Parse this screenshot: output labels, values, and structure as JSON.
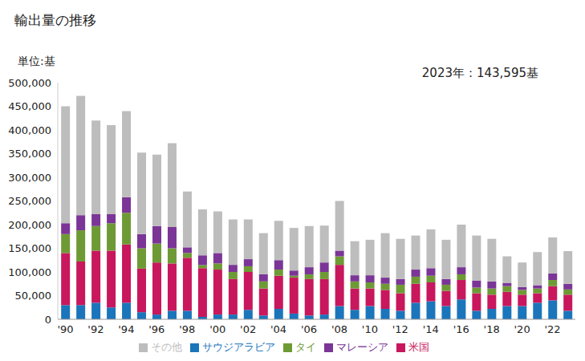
{
  "chart_data": {
    "type": "bar",
    "title": "輸出量の推移",
    "y_label": "単位:基",
    "annotations": [
      "2023年：143,595基"
    ],
    "stacked": true,
    "grid": false,
    "legend": "bottom",
    "categories": [
      "'90",
      null,
      "'92",
      null,
      "'94",
      null,
      "'96",
      null,
      "'98",
      null,
      "'00",
      null,
      "'02",
      null,
      "'04",
      null,
      "'06",
      null,
      "'08",
      null,
      "'10",
      null,
      "'12",
      null,
      "'14",
      null,
      "'16",
      null,
      "'18",
      null,
      "'20",
      null,
      "'22",
      null
    ],
    "series": [
      {
        "name": "サウジアラビア",
        "color": "#1b75bb",
        "values": [
          30000,
          30000,
          35000,
          25000,
          35000,
          15000,
          10000,
          18000,
          18000,
          5000,
          10000,
          10000,
          20000,
          8000,
          22000,
          12000,
          8000,
          10000,
          28000,
          20000,
          28000,
          22000,
          18000,
          35000,
          38000,
          28000,
          42000,
          18000,
          22000,
          28000,
          28000,
          35000,
          40000,
          18000
        ]
      },
      {
        "name": "米国",
        "color": "#c8175d",
        "values": [
          110000,
          92000,
          110000,
          120000,
          123000,
          92000,
          110000,
          100000,
          112000,
          103000,
          95000,
          75000,
          80000,
          57000,
          70000,
          76000,
          77000,
          75000,
          87000,
          45000,
          37000,
          40000,
          37000,
          40000,
          40000,
          32000,
          41000,
          37000,
          30000,
          30000,
          24000,
          20000,
          30000,
          34000
        ]
      },
      {
        "name": "タイ",
        "color": "#6e9a35",
        "values": [
          40000,
          66000,
          52000,
          58000,
          67000,
          43000,
          40000,
          32000,
          10000,
          7000,
          13000,
          15000,
          12000,
          15000,
          13000,
          4000,
          10000,
          15000,
          18000,
          15000,
          13000,
          13000,
          18000,
          15000,
          14000,
          13000,
          12000,
          12000,
          13000,
          12000,
          10000,
          10000,
          13000,
          11000
        ]
      },
      {
        "name": "マレーシア",
        "color": "#7b3596",
        "values": [
          23000,
          32000,
          25000,
          19000,
          33000,
          30000,
          37000,
          45000,
          12000,
          20000,
          22000,
          15000,
          15000,
          15000,
          20000,
          11000,
          15000,
          20000,
          12000,
          13000,
          15000,
          13000,
          12000,
          15000,
          16000,
          12000,
          15000,
          15000,
          15000,
          7000,
          6000,
          7000,
          14000,
          12000
        ]
      },
      {
        "name": "その他",
        "color": "#bdbdbd",
        "values": [
          247000,
          252000,
          198000,
          188000,
          182000,
          172000,
          151000,
          177000,
          118000,
          97000,
          88000,
          96000,
          84000,
          87000,
          83000,
          90000,
          87000,
          78000,
          105000,
          72000,
          75000,
          94000,
          85000,
          72000,
          82000,
          83000,
          90000,
          95000,
          90000,
          56000,
          52000,
          70000,
          76000,
          69000
        ]
      }
    ],
    "ylim": [
      0,
      500000
    ],
    "yticks": [
      0,
      {
        "value": 50000,
        "label": "50,000"
      },
      {
        "value": 100000,
        "label": "100,000"
      },
      {
        "value": 150000,
        "label": "150,000"
      },
      {
        "value": 200000,
        "label": "200,000"
      },
      {
        "value": 250000,
        "label": "250,000"
      },
      {
        "value": 300000,
        "label": "300,000"
      },
      {
        "value": 350000,
        "label": "350,000"
      },
      {
        "value": 400000,
        "label": "400,000"
      },
      {
        "value": 450000,
        "label": "450,000"
      },
      {
        "value": 500000,
        "label": "500,000"
      }
    ]
  }
}
